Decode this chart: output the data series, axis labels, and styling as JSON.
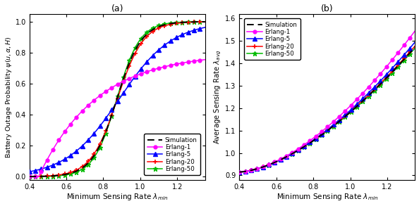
{
  "xlim": [
    0.4,
    1.35
  ],
  "ylim_a": [
    -0.02,
    1.05
  ],
  "ylim_b": [
    0.88,
    1.62
  ],
  "yticks_a": [
    0.0,
    0.2,
    0.4,
    0.6,
    0.8,
    1.0
  ],
  "yticks_b": [
    0.9,
    1.0,
    1.1,
    1.2,
    1.3,
    1.4,
    1.5,
    1.6
  ],
  "xticks": [
    0.4,
    0.6,
    0.8,
    1.0,
    1.2
  ],
  "xlabel": "Minimum Sensing Rate $\\lambda_{min}$",
  "ylabel_a": "Battery Outage Probability $\\psi(u,\\alpha,H)$",
  "ylabel_b": "Average Sensing Rate $\\lambda_{avg}$",
  "title_a": "(a)",
  "title_b": "(b)",
  "legend_labels": [
    "Simulation",
    "Erlang-1",
    "Erlang-5",
    "Erlang-20",
    "Erlang-50"
  ],
  "colors": {
    "simulation": "#000000",
    "erlang1": "#FF00FF",
    "erlang5": "#0000FF",
    "erlang20": "#FF0000",
    "erlang50": "#00BB00"
  },
  "figsize": [
    5.94,
    2.93
  ],
  "dpi": 100
}
